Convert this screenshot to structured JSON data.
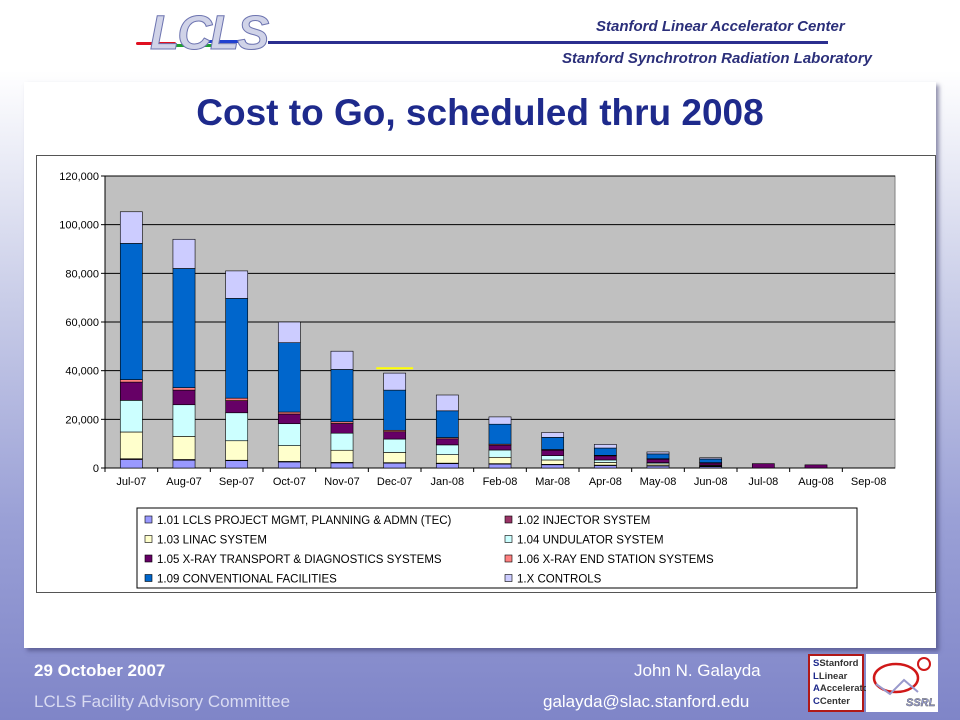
{
  "header": {
    "logo_text": "LCLS",
    "org_line1": "Stanford Linear Accelerator Center",
    "org_line2": "Stanford Synchrotron Radiation Laboratory"
  },
  "slide": {
    "title": "Cost to Go, scheduled thru 2008"
  },
  "chart_data": {
    "type": "bar",
    "stacked": true,
    "categories": [
      "Jul-07",
      "Aug-07",
      "Sep-07",
      "Oct-07",
      "Nov-07",
      "Dec-07",
      "Jan-08",
      "Feb-08",
      "Mar-08",
      "Apr-08",
      "May-08",
      "Jun-08",
      "Jul-08",
      "Aug-08",
      "Sep-08"
    ],
    "ylim": [
      0,
      120000
    ],
    "yticks": [
      "0",
      "20,000",
      "40,000",
      "60,000",
      "80,000",
      "100,000",
      "120,000"
    ],
    "ytick_values": [
      0,
      20000,
      40000,
      60000,
      80000,
      100000,
      120000
    ],
    "grid": true,
    "legend_position": "bottom",
    "series": [
      {
        "name": "1.01 LCLS PROJECT MGMT, PLANNING & ADMN (TEC)",
        "color": "#9999ff",
        "values": [
          3500,
          3200,
          3000,
          2500,
          2100,
          2000,
          1800,
          1600,
          1400,
          1100,
          900,
          600,
          0,
          0,
          0
        ]
      },
      {
        "name": "1.02 INJECTOR SYSTEM",
        "color": "#993366",
        "values": [
          300,
          300,
          200,
          200,
          200,
          200,
          200,
          200,
          100,
          100,
          100,
          100,
          0,
          0,
          0
        ]
      },
      {
        "name": "1.03 LINAC SYSTEM",
        "color": "#ffffcc",
        "values": [
          11000,
          9500,
          8000,
          6500,
          5000,
          4200,
          3500,
          2600,
          1800,
          1100,
          700,
          300,
          0,
          0,
          0
        ]
      },
      {
        "name": "1.04 UNDULATOR SYSTEM",
        "color": "#ccffff",
        "values": [
          13000,
          13000,
          11500,
          9000,
          7000,
          5500,
          4000,
          3000,
          1800,
          1000,
          500,
          200,
          0,
          0,
          0
        ]
      },
      {
        "name": "1.05 X-RAY TRANSPORT & DIAGNOSTICS SYSTEMS",
        "color": "#660066",
        "values": [
          7500,
          6000,
          5000,
          4000,
          4000,
          3000,
          2500,
          2000,
          2200,
          1700,
          1500,
          900,
          1800,
          1300,
          0
        ]
      },
      {
        "name": "1.06 X-RAY END STATION SYSTEMS",
        "color": "#ff8080",
        "values": [
          1000,
          1000,
          1000,
          800,
          700,
          600,
          500,
          400,
          300,
          200,
          100,
          100,
          0,
          0,
          0
        ]
      },
      {
        "name": "1.09 CONVENTIONAL FACILITIES",
        "color": "#0066cc",
        "values": [
          56000,
          49000,
          41000,
          28500,
          21500,
          16500,
          11000,
          8200,
          5000,
          3000,
          2000,
          1500,
          0,
          0,
          0
        ]
      },
      {
        "name": "1.X  CONTROLS",
        "color": "#ccccff",
        "values": [
          13000,
          12000,
          11300,
          8500,
          7500,
          7000,
          6500,
          3000,
          2000,
          1500,
          800,
          500,
          0,
          0,
          0
        ]
      }
    ],
    "annotation": {
      "type": "line",
      "color": "#ffff00",
      "category": "Dec-07",
      "value": 41000
    }
  },
  "footer": {
    "date": "29 October 2007",
    "committee": "LCLS Facility Advisory Committee",
    "name": "John N. Galayda",
    "email": "galayda@slac.stanford.edu"
  },
  "slac_logo": [
    "Stanford",
    "Linear",
    "Accelerator",
    "Center"
  ],
  "ssrl_logo": "SSRL"
}
